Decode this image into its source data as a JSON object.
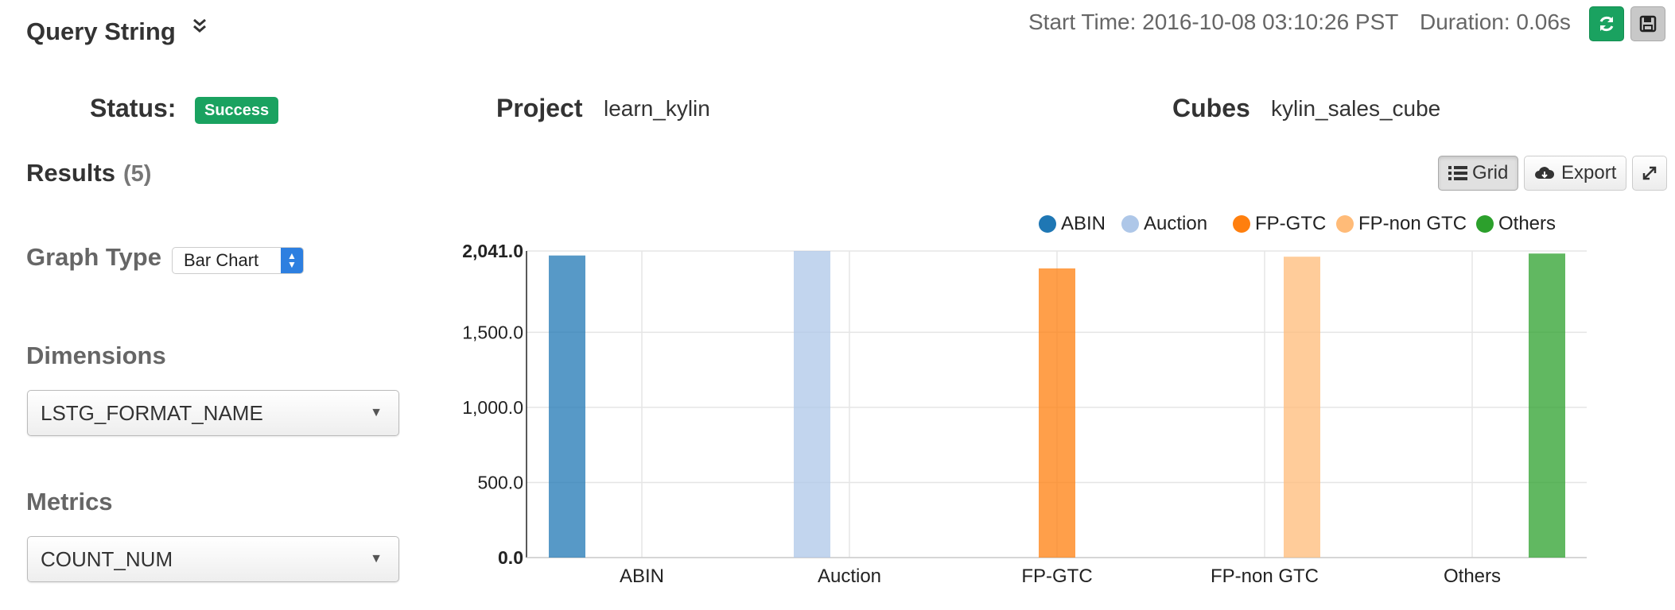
{
  "header": {
    "query_title": "Query String",
    "start_time": "Start Time: 2016-10-08 03:10:26 PST",
    "duration": "Duration: 0.06s"
  },
  "info": {
    "status_label": "Status:",
    "status_value": "Success",
    "project_label": "Project",
    "project_value": "learn_kylin",
    "cubes_label": "Cubes",
    "cubes_value": "kylin_sales_cube"
  },
  "results": {
    "label": "Results",
    "count": "(5)"
  },
  "toolbar": {
    "grid_label": "Grid",
    "export_label": "Export"
  },
  "sidebar": {
    "graph_type_label": "Graph Type",
    "graph_type_value": "Bar Chart",
    "dimensions_label": "Dimensions",
    "dimensions_value": "LSTG_FORMAT_NAME",
    "metrics_label": "Metrics",
    "metrics_value": "COUNT_NUM"
  },
  "colors": {
    "success": "#1aa260",
    "abin": "#1f77b4",
    "auction": "#aec7e8",
    "fpgtc": "#ff7f0e",
    "fpnongtc": "#ffbb78",
    "others": "#2ca02c"
  },
  "chart_data": {
    "type": "bar",
    "categories": [
      "ABIN",
      "Auction",
      "FP-GTC",
      "FP-non GTC",
      "Others"
    ],
    "series": [
      {
        "name": "ABIN",
        "values": [
          2011,
          null,
          null,
          null,
          null
        ],
        "color": "#1f77b4"
      },
      {
        "name": "Auction",
        "values": [
          null,
          2041,
          null,
          null,
          null
        ],
        "color": "#aec7e8"
      },
      {
        "name": "FP-GTC",
        "values": [
          null,
          null,
          1925,
          null,
          null
        ],
        "color": "#ff7f0e"
      },
      {
        "name": "FP-non GTC",
        "values": [
          null,
          null,
          null,
          2003,
          null
        ],
        "color": "#ffbb78"
      },
      {
        "name": "Others",
        "values": [
          null,
          null,
          null,
          null,
          2024
        ],
        "color": "#2ca02c"
      }
    ],
    "yticks": [
      "0.0",
      "500.0",
      "1,000.0",
      "1,500.0",
      "2,041.0"
    ],
    "ytick_values": [
      0,
      500,
      1000,
      1500,
      2041
    ],
    "ylim": [
      0,
      2041
    ],
    "legend_position": "top-right",
    "grid": true
  }
}
